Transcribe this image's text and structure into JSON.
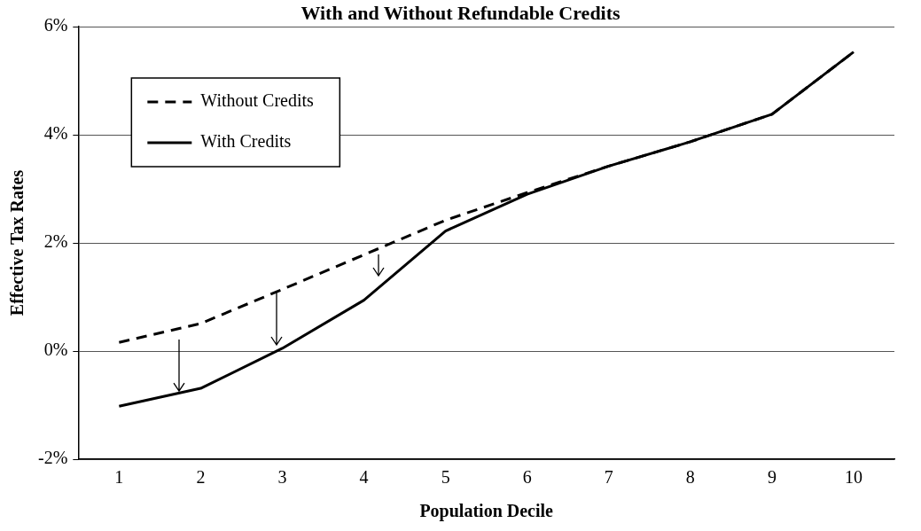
{
  "chart_data": {
    "type": "line",
    "title": "With and Without Refundable Credits",
    "xlabel": "Population Decile",
    "ylabel": "Effective Tax Rates",
    "categories": [
      "1",
      "2",
      "3",
      "4",
      "5",
      "6",
      "7",
      "8",
      "9",
      "10"
    ],
    "series": [
      {
        "name": "Without Credits",
        "color": "#000000",
        "line_style": "dashed",
        "values": [
          0.16,
          0.51,
          1.14,
          1.78,
          2.42,
          2.93,
          3.42,
          3.87,
          4.38,
          5.53
        ]
      },
      {
        "name": "With Credits",
        "color": "#000000",
        "line_style": "solid",
        "values": [
          -1.02,
          -0.69,
          0.05,
          0.94,
          2.22,
          2.9,
          3.42,
          3.87,
          4.38,
          5.53
        ]
      }
    ],
    "ylim": [
      -2,
      6
    ],
    "yticks": [
      {
        "value": -2,
        "label": "-2%"
      },
      {
        "value": 0,
        "label": "0%"
      },
      {
        "value": 2,
        "label": "2%"
      },
      {
        "value": 4,
        "label": "4%"
      },
      {
        "value": 6,
        "label": "6%"
      }
    ],
    "grid": "y",
    "legend": "top left",
    "marker": "none"
  }
}
